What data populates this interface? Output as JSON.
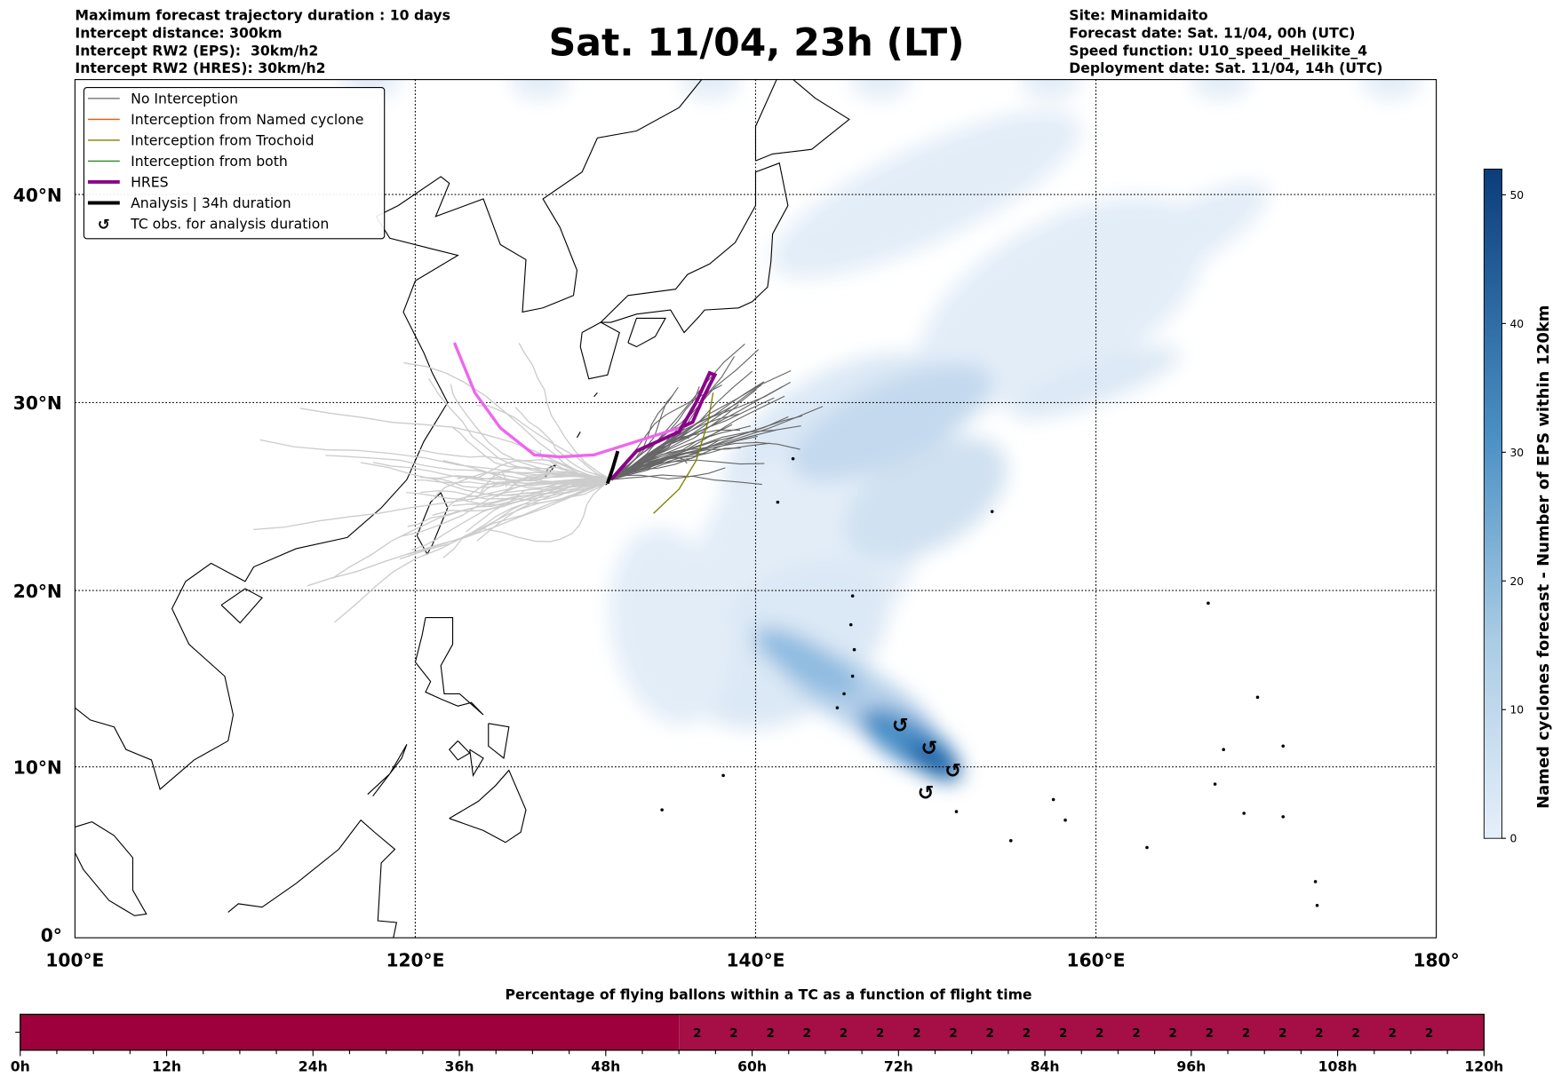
{
  "header": {
    "title": "Sat. 11/04, 23h (LT)",
    "left": [
      "Maximum forecast trajectory duration : 10 days",
      "Intercept distance: 300km",
      "Intercept RW2 (EPS):  30km/h2",
      "Intercept RW2 (HRES): 30km/h2"
    ],
    "right": [
      "Site: Minamidaito",
      "Forecast date: Sat. 11/04, 00h (UTC)",
      "Speed function: U10_speed_Helikite_4",
      "Deployment date: Sat. 11/04, 14h (UTC)"
    ]
  },
  "map": {
    "lon_ticks": [
      "100°E",
      "120°E",
      "140°E",
      "160°E",
      "180°"
    ],
    "lat_ticks": [
      "0°",
      "10°N",
      "20°N",
      "30°N",
      "40°N"
    ],
    "legend": [
      {
        "label": "No Interception",
        "color": "#666666"
      },
      {
        "label": "Interception from Named cyclone",
        "color": "#ff5500"
      },
      {
        "label": "Interception from Trochoid",
        "color": "#808000"
      },
      {
        "label": "Interception from both",
        "color": "#228b22"
      },
      {
        "label": "HRES",
        "color": "#8b008b"
      },
      {
        "label": "Analysis | 34h duration",
        "color": "#000000"
      },
      {
        "label": "TC obs. for analysis duration",
        "icon": "tc-symbol"
      }
    ],
    "tc_symbol": "↺"
  },
  "colorbar": {
    "label": "Named cyclones forecast - Number of EPS within 120km",
    "ticks": [
      "0",
      "10",
      "20",
      "30",
      "40",
      "50"
    ],
    "range": [
      0,
      52
    ],
    "color_low": "#e6eff9",
    "color_high": "#0b3d7a"
  },
  "flight_bar": {
    "title": "Percentage of flying ballons within a TC as a function of flight time",
    "ticks": [
      "0h",
      "12h",
      "24h",
      "36h",
      "48h",
      "60h",
      "72h",
      "84h",
      "96h",
      "108h",
      "120h"
    ],
    "segments": [
      {
        "from_h": 0,
        "to_h": 54,
        "color": "#9d003c"
      },
      {
        "from_h": 54,
        "to_h": 120,
        "color": "#a50f45"
      }
    ],
    "values": [
      "2",
      "2",
      "2",
      "2",
      "2",
      "2",
      "2",
      "2",
      "2",
      "2",
      "2",
      "2",
      "2",
      "2",
      "2",
      "2",
      "2",
      "2",
      "2",
      "2",
      "2"
    ]
  }
}
